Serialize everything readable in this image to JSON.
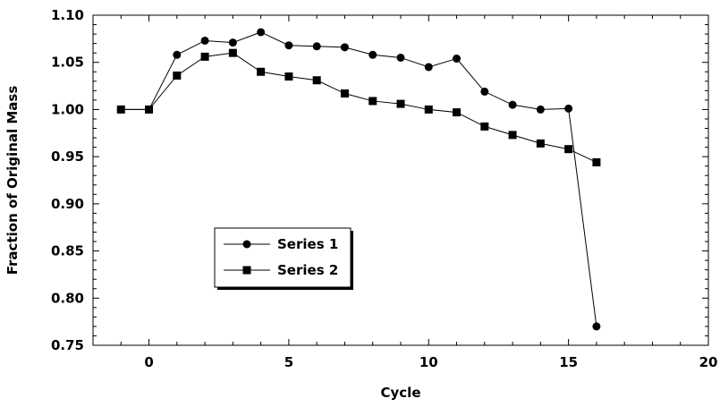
{
  "chart_data": {
    "type": "line",
    "title": "",
    "xlabel": "Cycle",
    "ylabel": "Fraction of Original Mass",
    "xlim": [
      -2,
      20
    ],
    "ylim": [
      0.75,
      1.1
    ],
    "x_ticks": [
      0,
      5,
      10,
      15,
      20
    ],
    "x_tick_labels": [
      "0",
      "5",
      "10",
      "15",
      "20"
    ],
    "y_ticks": [
      0.75,
      0.8,
      0.85,
      0.9,
      0.95,
      1.0,
      1.05,
      1.1
    ],
    "y_tick_labels": [
      "0.75",
      "0.80",
      "0.85",
      "0.90",
      "0.95",
      "1.00",
      "1.05",
      "1.10"
    ],
    "grid": false,
    "legend_position": "lower-left",
    "series": [
      {
        "name": "Series 1",
        "marker": "circle",
        "color": "#000000",
        "x": [
          -1,
          0,
          1,
          2,
          3,
          4,
          5,
          6,
          7,
          8,
          9,
          10,
          11,
          12,
          13,
          14,
          15,
          16
        ],
        "y": [
          1.0,
          1.0,
          1.058,
          1.073,
          1.071,
          1.082,
          1.068,
          1.067,
          1.066,
          1.058,
          1.055,
          1.045,
          1.054,
          1.019,
          1.005,
          1.0,
          1.001,
          0.77
        ]
      },
      {
        "name": "Series 2",
        "marker": "square",
        "color": "#000000",
        "x": [
          -1,
          0,
          1,
          2,
          3,
          4,
          5,
          6,
          7,
          8,
          9,
          10,
          11,
          12,
          13,
          14,
          15,
          16
        ],
        "y": [
          1.0,
          1.0,
          1.036,
          1.056,
          1.06,
          1.04,
          1.035,
          1.031,
          1.017,
          1.009,
          1.006,
          1.0,
          0.997,
          0.982,
          0.973,
          0.964,
          0.958,
          0.944
        ]
      }
    ]
  }
}
